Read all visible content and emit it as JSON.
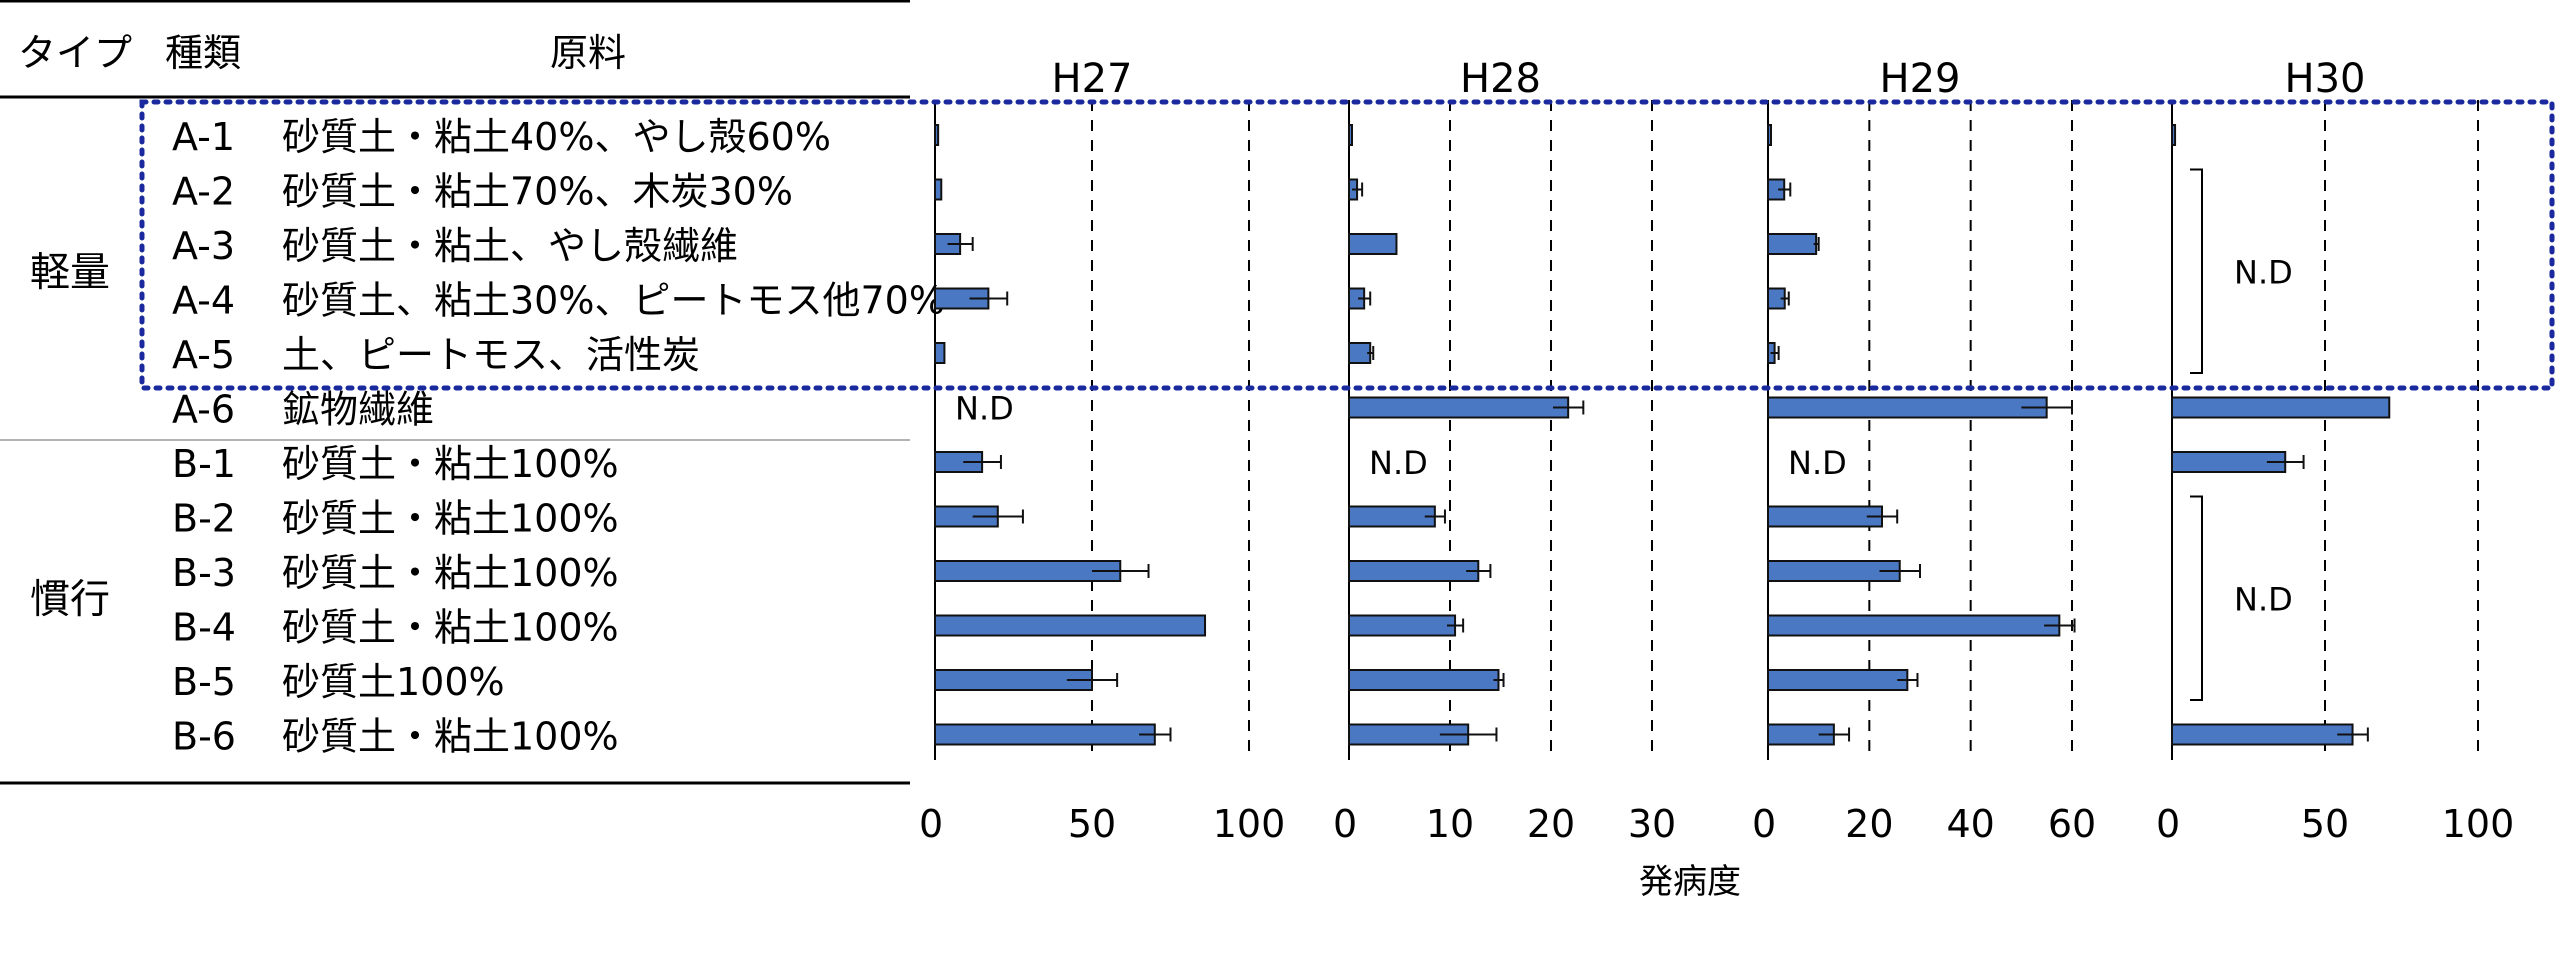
{
  "table": {
    "headers": {
      "type": "タイプ",
      "kind": "種類",
      "material": "原料"
    },
    "groups": [
      {
        "label": "軽量",
        "first_row": 0,
        "last_row": 5
      },
      {
        "label": "慣行",
        "first_row": 6,
        "last_row": 11
      }
    ],
    "rows": [
      {
        "id": "A-1",
        "material": "砂質土・粘土40%、やし殻60%"
      },
      {
        "id": "A-2",
        "material": "砂質土・粘土70%、木炭30%"
      },
      {
        "id": "A-3",
        "material": "砂質土・粘土、やし殻繊維"
      },
      {
        "id": "A-4",
        "material": "砂質土、粘土30%、ピートモス他70%"
      },
      {
        "id": "A-5",
        "material": "土、ピートモス、活性炭"
      },
      {
        "id": "A-6",
        "material": "鉱物繊維"
      },
      {
        "id": "B-1",
        "material": "砂質土・粘土100%"
      },
      {
        "id": "B-2",
        "material": "砂質土・粘土100%"
      },
      {
        "id": "B-3",
        "material": "砂質土・粘土100%"
      },
      {
        "id": "B-4",
        "material": "砂質土・粘土100%"
      },
      {
        "id": "B-5",
        "material": "砂質土100%"
      },
      {
        "id": "B-6",
        "material": "砂質土・粘土100%"
      }
    ]
  },
  "colors": {
    "bar": "#4a78c2",
    "highlight_box": "#1a2a9e"
  },
  "chart_data": [
    {
      "type": "bar",
      "orientation": "horizontal",
      "title": "H27",
      "xlim": [
        0,
        100
      ],
      "xticks": [
        0,
        50,
        100
      ],
      "grid": "dashed-vertical",
      "values": [
        1,
        2,
        8,
        17,
        3,
        null,
        15,
        20,
        59,
        86,
        50,
        70
      ],
      "errors": [
        0,
        0,
        4,
        6,
        0,
        null,
        6,
        8,
        9,
        0,
        8,
        5
      ],
      "nd_labels": [
        {
          "text": "N.D",
          "rows": [
            5
          ]
        }
      ]
    },
    {
      "type": "bar",
      "orientation": "horizontal",
      "title": "H28",
      "xlim": [
        0,
        30
      ],
      "xticks": [
        0,
        10,
        20,
        30
      ],
      "grid": "dashed-vertical",
      "values": [
        0.2,
        0.8,
        4.7,
        1.5,
        2.1,
        21.7,
        null,
        8.5,
        12.8,
        10.5,
        14.8,
        11.8
      ],
      "errors": [
        0,
        0.5,
        0,
        0.6,
        0.3,
        1.5,
        null,
        1.0,
        1.2,
        0.8,
        0.5,
        2.8
      ],
      "nd_labels": [
        {
          "text": "N.D",
          "rows": [
            6
          ]
        }
      ]
    },
    {
      "type": "bar",
      "orientation": "horizontal",
      "title": "H29",
      "xlim": [
        0,
        60
      ],
      "xticks": [
        0,
        20,
        40,
        60
      ],
      "grid": "dashed-vertical",
      "values": [
        0.3,
        3.2,
        9.5,
        3.3,
        1.3,
        55,
        null,
        22.5,
        26,
        57.5,
        27.5,
        13
      ],
      "errors": [
        0,
        1.2,
        0.5,
        0.8,
        0.8,
        5,
        null,
        3,
        4,
        3,
        2,
        3
      ],
      "nd_labels": [
        {
          "text": "N.D",
          "rows": [
            6
          ]
        }
      ]
    },
    {
      "type": "bar",
      "orientation": "horizontal",
      "title": "H30",
      "xlim": [
        0,
        100
      ],
      "xticks": [
        0,
        50,
        100
      ],
      "grid": "dashed-vertical",
      "values": [
        1,
        null,
        null,
        null,
        null,
        71,
        37,
        null,
        null,
        null,
        null,
        59
      ],
      "errors": [
        0,
        null,
        null,
        null,
        null,
        0,
        6,
        null,
        null,
        null,
        null,
        5
      ],
      "nd_labels": [
        {
          "text": "N.D",
          "rows": [
            1,
            2,
            3,
            4
          ]
        },
        {
          "text": "N.D",
          "rows": [
            7,
            8,
            9,
            10
          ]
        }
      ]
    }
  ],
  "xlabel": "発病度"
}
